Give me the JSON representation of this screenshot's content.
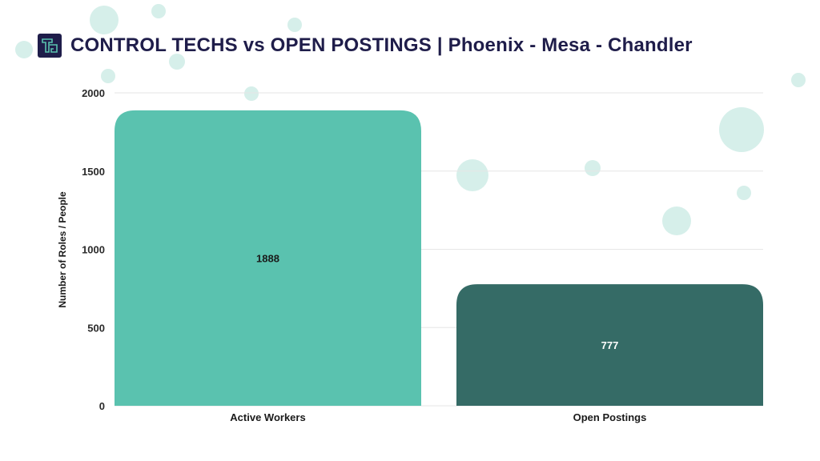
{
  "title": "CONTROL TECHS vs OPEN POSTINGS | Phoenix - Mesa - Chandler",
  "colors": {
    "title": "#1f1d4a",
    "bubble": "#d6efea",
    "grid": "#e6e6e6"
  },
  "chart_data": {
    "type": "bar",
    "title": "CONTROL TECHS vs OPEN POSTINGS | Phoenix - Mesa - Chandler",
    "xlabel": "",
    "ylabel": "Number of Roles / People",
    "categories": [
      "Active Workers",
      "Open Postings"
    ],
    "values": [
      1888,
      777
    ],
    "data_labels": [
      "1888",
      "777"
    ],
    "bar_colors": [
      "#5ac2af",
      "#356b66"
    ],
    "label_colors": [
      "#1a1a1a",
      "#ffffff"
    ],
    "ylim": [
      0,
      2000
    ],
    "yticks": [
      0,
      500,
      1000,
      1500,
      2000
    ],
    "ytick_labels": [
      "0",
      "500",
      "1000",
      "1500",
      "2000"
    ],
    "grid": true,
    "legend": false
  }
}
